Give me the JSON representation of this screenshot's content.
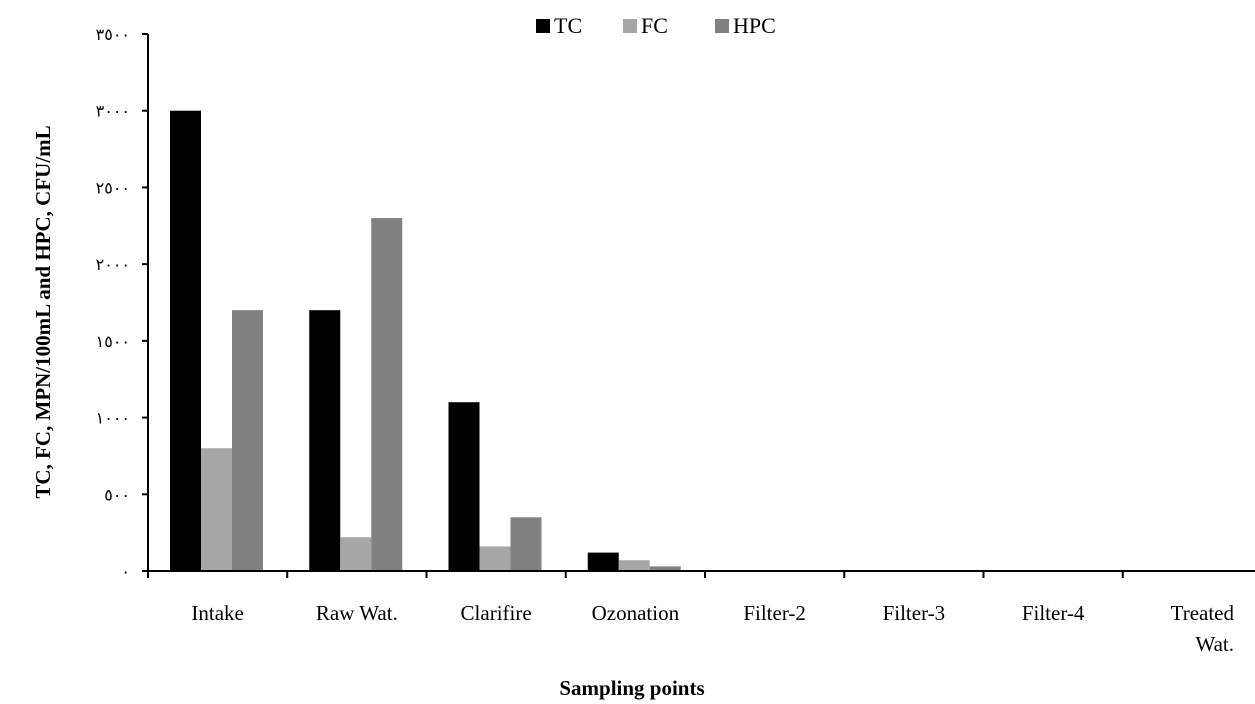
{
  "chart_data": {
    "type": "bar",
    "title": "",
    "xlabel": "Sampling points",
    "ylabel": "TC, FC, MPN/100mL and HPC, CFU/mL",
    "ylim": [
      0,
      3500
    ],
    "yticks": [
      0,
      500,
      1000,
      1500,
      2000,
      2500,
      3000,
      3500
    ],
    "ytick_labels": [
      "٠",
      "٥٠٠",
      "١٠٠٠",
      "١٥٠٠",
      "٢٠٠٠",
      "٢٥٠٠",
      "٣٠٠٠",
      "٣٥٠٠"
    ],
    "categories": [
      "Intake",
      "Raw Wat.",
      "Clarifire",
      "Ozonation",
      "Filter-2",
      "Filter-3",
      "Filter-4",
      "Treated Wat."
    ],
    "series": [
      {
        "name": "TC",
        "color": "#000000",
        "values": [
          3000,
          1700,
          1100,
          120,
          0,
          0,
          0,
          0
        ]
      },
      {
        "name": "FC",
        "color": "#a6a6a6",
        "values": [
          800,
          220,
          160,
          70,
          0,
          0,
          0,
          0
        ]
      },
      {
        "name": "HPC",
        "color": "#808080",
        "values": [
          1700,
          2300,
          350,
          30,
          0,
          0,
          0,
          0
        ]
      }
    ],
    "legend_position": "top-center",
    "grid": false
  }
}
